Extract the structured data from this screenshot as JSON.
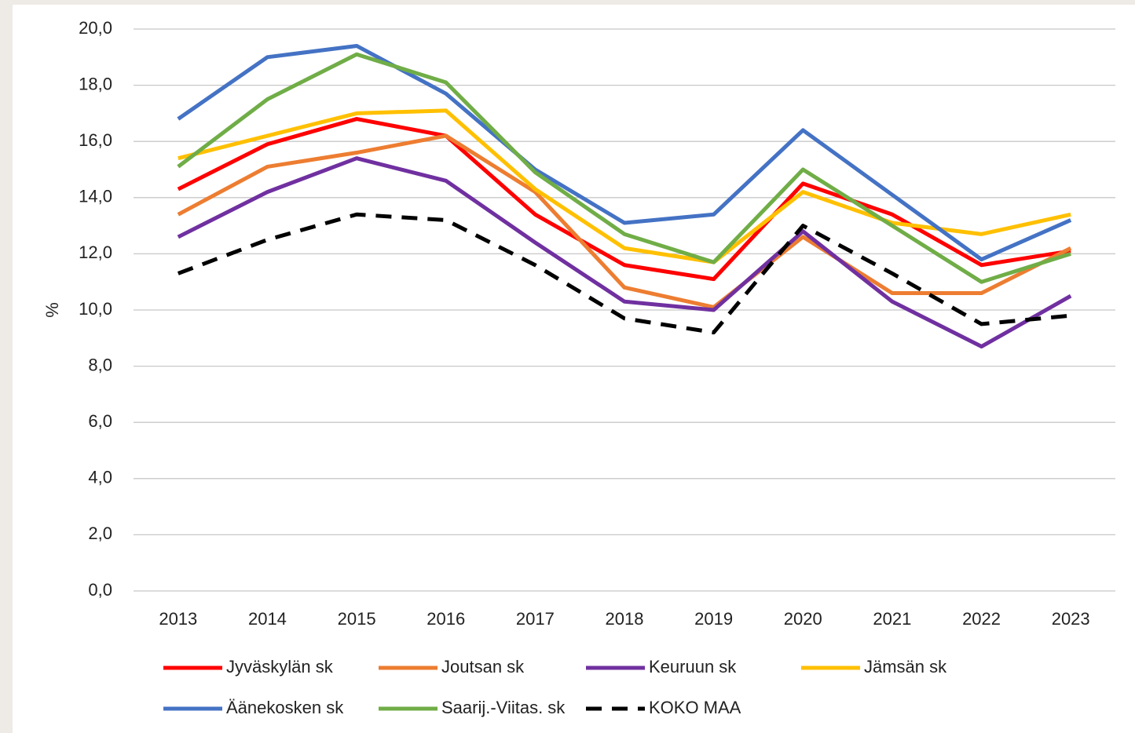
{
  "chart_data": {
    "type": "line",
    "y_label": "%",
    "categories": [
      "2013",
      "2014",
      "2015",
      "2016",
      "2017",
      "2018",
      "2019",
      "2020",
      "2021",
      "2022",
      "2023"
    ],
    "ylim": [
      0,
      20
    ],
    "yticks": [
      {
        "value": 0,
        "label": "0,0"
      },
      {
        "value": 2,
        "label": "2,0"
      },
      {
        "value": 4,
        "label": "4,0"
      },
      {
        "value": 6,
        "label": "6,0"
      },
      {
        "value": 8,
        "label": "8,0"
      },
      {
        "value": 10,
        "label": "10,0"
      },
      {
        "value": 12,
        "label": "12,0"
      },
      {
        "value": 14,
        "label": "14,0"
      },
      {
        "value": 16,
        "label": "16,0"
      },
      {
        "value": 18,
        "label": "18,0"
      },
      {
        "value": 20,
        "label": "20,0"
      }
    ],
    "grid": true,
    "legend": "bottom",
    "series": [
      {
        "name": "Jyväskylän sk",
        "color": "#ff0000",
        "dashed": false,
        "values": [
          14.3,
          15.9,
          16.8,
          16.2,
          13.4,
          11.6,
          11.1,
          14.5,
          13.4,
          11.6,
          12.1
        ]
      },
      {
        "name": "Joutsan sk",
        "color": "#ed7d31",
        "dashed": false,
        "values": [
          13.4,
          15.1,
          15.6,
          16.2,
          14.2,
          10.8,
          10.1,
          12.6,
          10.6,
          10.6,
          12.2
        ]
      },
      {
        "name": "Keuruun sk",
        "color": "#7030a0",
        "dashed": false,
        "values": [
          12.6,
          14.2,
          15.4,
          14.6,
          12.4,
          10.3,
          10.0,
          12.8,
          10.3,
          8.7,
          10.5
        ]
      },
      {
        "name": "Jämsän sk",
        "color": "#ffc000",
        "dashed": false,
        "values": [
          15.4,
          16.2,
          17.0,
          17.1,
          14.3,
          12.2,
          11.7,
          14.2,
          13.1,
          12.7,
          13.4
        ]
      },
      {
        "name": "Äänekosken sk",
        "color": "#4472c4",
        "dashed": false,
        "values": [
          16.8,
          19.0,
          19.4,
          17.7,
          15.0,
          13.1,
          13.4,
          16.4,
          14.1,
          11.8,
          13.2
        ]
      },
      {
        "name": "Saarij.-Viitas. sk",
        "color": "#70ad47",
        "dashed": false,
        "values": [
          15.1,
          17.5,
          19.1,
          18.1,
          14.9,
          12.7,
          11.7,
          15.0,
          13.0,
          11.0,
          12.0
        ]
      },
      {
        "name": "KOKO MAA",
        "color": "#000000",
        "dashed": true,
        "values": [
          11.3,
          12.5,
          13.4,
          13.2,
          11.6,
          9.7,
          9.2,
          13.0,
          11.3,
          9.5,
          9.8
        ]
      }
    ]
  }
}
